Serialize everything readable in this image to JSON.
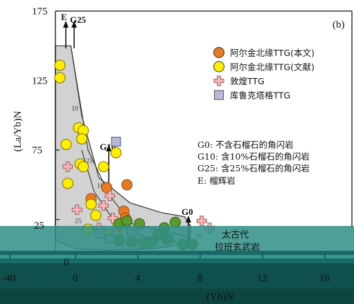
{
  "chart_data": {
    "type": "scatter",
    "panel_label": "(b)",
    "xlabel": "(Yb)N",
    "ylabel": "(La/Yb)N",
    "ylim": [
      0,
      175
    ],
    "y_ticks": [
      25,
      75,
      125,
      175
    ],
    "x_ticks_lower": [
      -40,
      0,
      4,
      8,
      12,
      16
    ],
    "x_tick_extra": "0",
    "legend": [
      {
        "label": "阿尔金北缘TTG(本文)",
        "marker": "circle",
        "color": "#e87a22"
      },
      {
        "label": "阿尔金北缘TTG(文献)",
        "marker": "circle",
        "color": "#ffee00"
      },
      {
        "label": "敦煌TTG",
        "marker": "cross",
        "color": "#f6b4b4"
      },
      {
        "label": "库鲁克塔格TTG",
        "marker": "square",
        "color": "#b8b8d8"
      }
    ],
    "annotations": [
      "G0: 不含石榴石的角闪岩",
      "G10: 含10%石榴石的角闪岩",
      "G25: 含25%石榴石的角闪岩",
      "E: 榴辉岩"
    ],
    "curve_labels": [
      "E",
      "G25",
      "G10",
      "G0"
    ],
    "curve_ticks": [
      "10",
      "25",
      "10",
      "25",
      "10"
    ],
    "field_labels": [
      "太古代",
      "拉班玄武岩"
    ],
    "series": [
      {
        "name": "阿尔金北缘TTG(本文)",
        "points": [
          [
            2.0,
            48
          ],
          [
            3.1,
            31
          ],
          [
            3.2,
            26
          ],
          [
            1.0,
            40
          ],
          [
            3.3,
            50
          ]
        ]
      },
      {
        "name": "阿尔金北缘TTG(文献)",
        "points": [
          [
            -1.0,
            136
          ],
          [
            -1.0,
            127
          ],
          [
            0.2,
            91
          ],
          [
            0.5,
            89
          ],
          [
            0.4,
            83
          ],
          [
            0.3,
            65
          ],
          [
            0.5,
            63
          ],
          [
            1.8,
            63
          ],
          [
            2.6,
            73
          ],
          [
            -0.6,
            79
          ],
          [
            -0.5,
            51
          ],
          [
            1.0,
            36
          ],
          [
            1.3,
            28
          ],
          [
            2.7,
            20
          ],
          [
            0.8,
            18
          ],
          [
            2.0,
            14
          ]
        ]
      },
      {
        "name": "敦煌TTG",
        "points": [
          [
            2.2,
            42
          ],
          [
            1.8,
            35
          ],
          [
            2.4,
            26
          ],
          [
            1.5,
            19
          ],
          [
            -0.5,
            63
          ],
          [
            0.1,
            32
          ],
          [
            2.6,
            15
          ],
          [
            8.1,
            24
          ],
          [
            8.6,
            19
          ],
          [
            4.1,
            8
          ]
        ]
      },
      {
        "name": "库鲁克塔格TTG",
        "points": [
          [
            2.6,
            81
          ],
          [
            1.6,
            15
          ],
          [
            2.2,
            11
          ],
          [
            3.6,
            17
          ]
        ]
      },
      {
        "name": "",
        "points": [
          [
            2.8,
            22
          ],
          [
            3.3,
            24
          ],
          [
            4.1,
            22
          ],
          [
            6.4,
            23
          ],
          [
            5.7,
            19
          ],
          [
            5.3,
            14
          ],
          [
            4.9,
            9
          ],
          [
            4.4,
            8
          ],
          [
            6.9,
            7
          ],
          [
            7.5,
            7
          ],
          [
            2.8,
            10
          ],
          [
            3.6,
            9
          ],
          [
            5.9,
            11
          ]
        ]
      }
    ]
  }
}
